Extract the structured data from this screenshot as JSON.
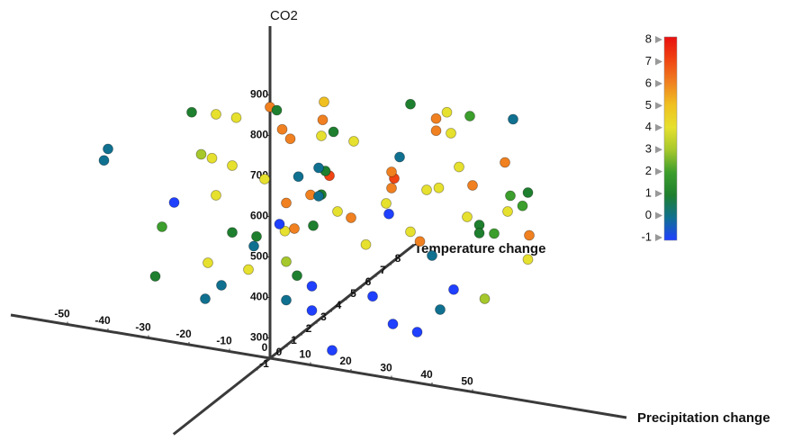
{
  "chart_data": {
    "type": "scatter3d",
    "x_label": "Precipitation change",
    "y_label": "Temperature change",
    "z_label": "CO2",
    "xlim": [
      -64,
      88
    ],
    "ylim": [
      -6.5,
      9.7
    ],
    "zlim": [
      250,
      1070
    ],
    "xticks": [
      -50,
      -40,
      -30,
      -20,
      -10,
      0,
      10,
      20,
      30,
      40,
      50
    ],
    "yticks": [
      -1,
      0,
      1,
      2,
      3,
      4,
      5,
      6,
      7,
      8
    ],
    "zticks": [
      300,
      400,
      500,
      600,
      700,
      800,
      900
    ],
    "clim": [
      -1,
      8
    ],
    "cticks": [
      -1,
      0,
      1,
      2,
      3,
      4,
      5,
      6,
      7,
      8
    ],
    "colorscale": [
      "#2040ff",
      "#107090",
      "#1e7f2e",
      "#3c9e2c",
      "#a6c82c",
      "#e6e02e",
      "#f0c020",
      "#f08020",
      "#f04412",
      "#e81010"
    ],
    "x": [
      -40,
      -41,
      -23,
      -28,
      -23,
      -28,
      -29,
      -24,
      -28,
      -20,
      -34,
      -13,
      -32,
      -30,
      -12,
      -16,
      -20,
      -4,
      -7,
      -2,
      -22,
      -19,
      -17,
      7,
      12,
      10,
      12,
      9,
      -12,
      -5,
      -9,
      12,
      -2,
      6,
      31,
      19,
      42,
      60,
      19,
      30,
      32,
      8,
      32,
      27,
      36,
      28,
      33,
      14,
      9,
      20,
      15,
      40,
      48,
      48,
      48,
      52,
      60,
      55,
      42,
      49,
      42,
      49,
      42,
      40,
      34,
      29,
      14,
      14,
      19,
      3,
      -7,
      -11,
      -16,
      7,
      6,
      -2,
      2,
      -18,
      -11,
      -16,
      8,
      5,
      24,
      44,
      34,
      4,
      29
    ],
    "y": [
      0,
      0,
      1,
      4,
      4,
      3,
      4,
      4,
      4,
      -1,
      2,
      1,
      1,
      4,
      0,
      0,
      4,
      0,
      1,
      1,
      6,
      6,
      6,
      0,
      0,
      1,
      0,
      1,
      6,
      5,
      6,
      1,
      4,
      4,
      1,
      6,
      2,
      0,
      6,
      4,
      0,
      6,
      4,
      4,
      6,
      6,
      -1,
      4,
      4,
      4,
      6,
      0,
      1,
      1,
      2,
      2,
      1,
      2,
      6,
      4,
      3,
      -1,
      0,
      -1,
      -1,
      -1,
      -1,
      -1,
      -1,
      1,
      3,
      4,
      6,
      1,
      -1,
      6,
      4,
      6,
      7,
      4,
      6,
      7,
      4,
      4,
      4,
      0,
      4
    ],
    "z": [
      700,
      670,
      790,
      690,
      690,
      620,
      580,
      570,
      490,
      630,
      460,
      510,
      370,
      320,
      410,
      370,
      320,
      520,
      510,
      830,
      660,
      610,
      590,
      710,
      740,
      700,
      670,
      640,
      460,
      730,
      650,
      800,
      680,
      680,
      900,
      700,
      860,
      940,
      670,
      740,
      800,
      550,
      660,
      600,
      620,
      550,
      690,
      540,
      430,
      480,
      390,
      570,
      630,
      610,
      580,
      680,
      730,
      660,
      450,
      460,
      380,
      530,
      440,
      410,
      420,
      480,
      480,
      420,
      330,
      430,
      390,
      430,
      370,
      560,
      620,
      420,
      500,
      430,
      480,
      550,
      510,
      500,
      590,
      570,
      540,
      400,
      790
    ]
  }
}
